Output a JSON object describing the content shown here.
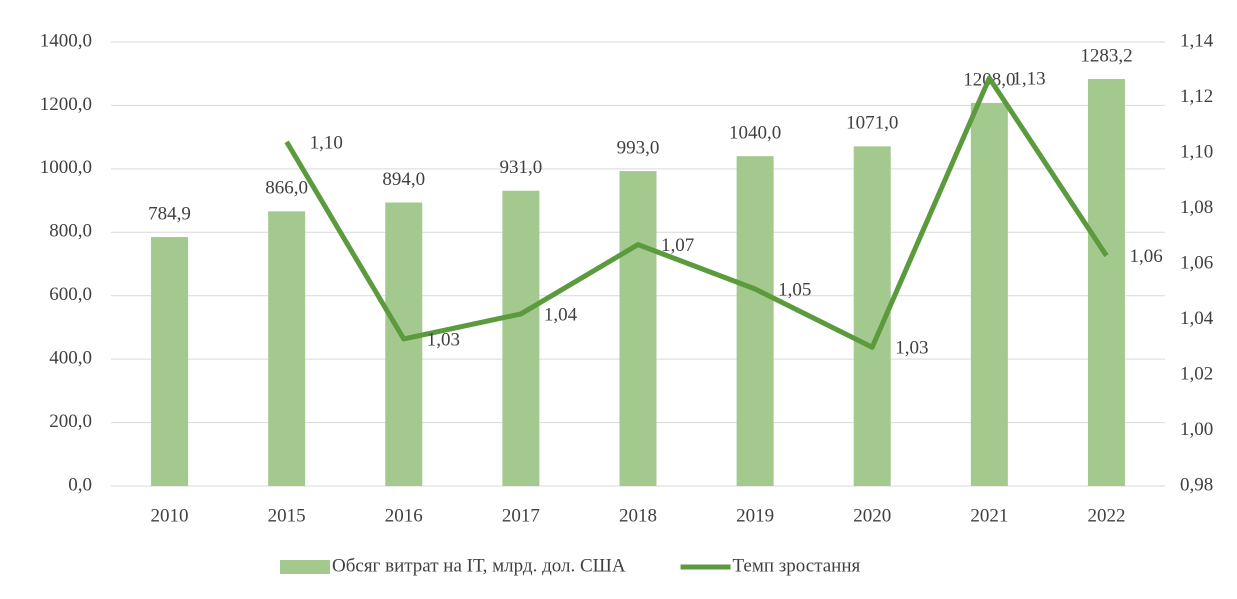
{
  "chart_data": {
    "type": "bar_line",
    "categories": [
      "2010",
      "2015",
      "2016",
      "2017",
      "2018",
      "2019",
      "2020",
      "2021",
      "2022"
    ],
    "series": [
      {
        "name": "Обсяг витрат на ІТ, млрд. дол. США",
        "type": "bar",
        "color": "#a3c98f",
        "values": [
          784.9,
          866.0,
          894.0,
          931.0,
          993.0,
          1040.0,
          1071.0,
          1208.0,
          1283.2
        ],
        "value_labels": [
          "784,9",
          "866,0",
          "894,0",
          "931,0",
          "993,0",
          "1040,0",
          "1071,0",
          "1208,0",
          "1283,2"
        ]
      },
      {
        "name": "Темп зростання",
        "type": "line",
        "axis": "y2",
        "color": "#5b9a3d",
        "values": [
          null,
          1.104,
          1.033,
          1.042,
          1.067,
          1.051,
          1.03,
          1.127,
          1.063
        ],
        "value_labels": [
          null,
          "1,10",
          "1,03",
          "1,04",
          "1,07",
          "1,05",
          "1,03",
          "1,13",
          "1,06"
        ]
      }
    ],
    "ylim": [
      0,
      1400
    ],
    "yticks": [
      {
        "value": 0,
        "label": "0,0"
      },
      {
        "value": 200,
        "label": "200,0"
      },
      {
        "value": 400,
        "label": "400,0"
      },
      {
        "value": 600,
        "label": "600,0"
      },
      {
        "value": 800,
        "label": "800,0"
      },
      {
        "value": 1000,
        "label": "1000,0"
      },
      {
        "value": 1200,
        "label": "1200,0"
      },
      {
        "value": 1400,
        "label": "1400,0"
      }
    ],
    "y2lim": [
      0.98,
      1.14
    ],
    "y2ticks": [
      {
        "value": 0.98,
        "label": "0,98"
      },
      {
        "value": 1.0,
        "label": "1,00"
      },
      {
        "value": 1.02,
        "label": "1,02"
      },
      {
        "value": 1.04,
        "label": "1,04"
      },
      {
        "value": 1.06,
        "label": "1,06"
      },
      {
        "value": 1.08,
        "label": "1,08"
      },
      {
        "value": 1.1,
        "label": "1,10"
      },
      {
        "value": 1.12,
        "label": "1,12"
      },
      {
        "value": 1.14,
        "label": "1,14"
      }
    ],
    "grid": true,
    "legend": "bottom"
  }
}
